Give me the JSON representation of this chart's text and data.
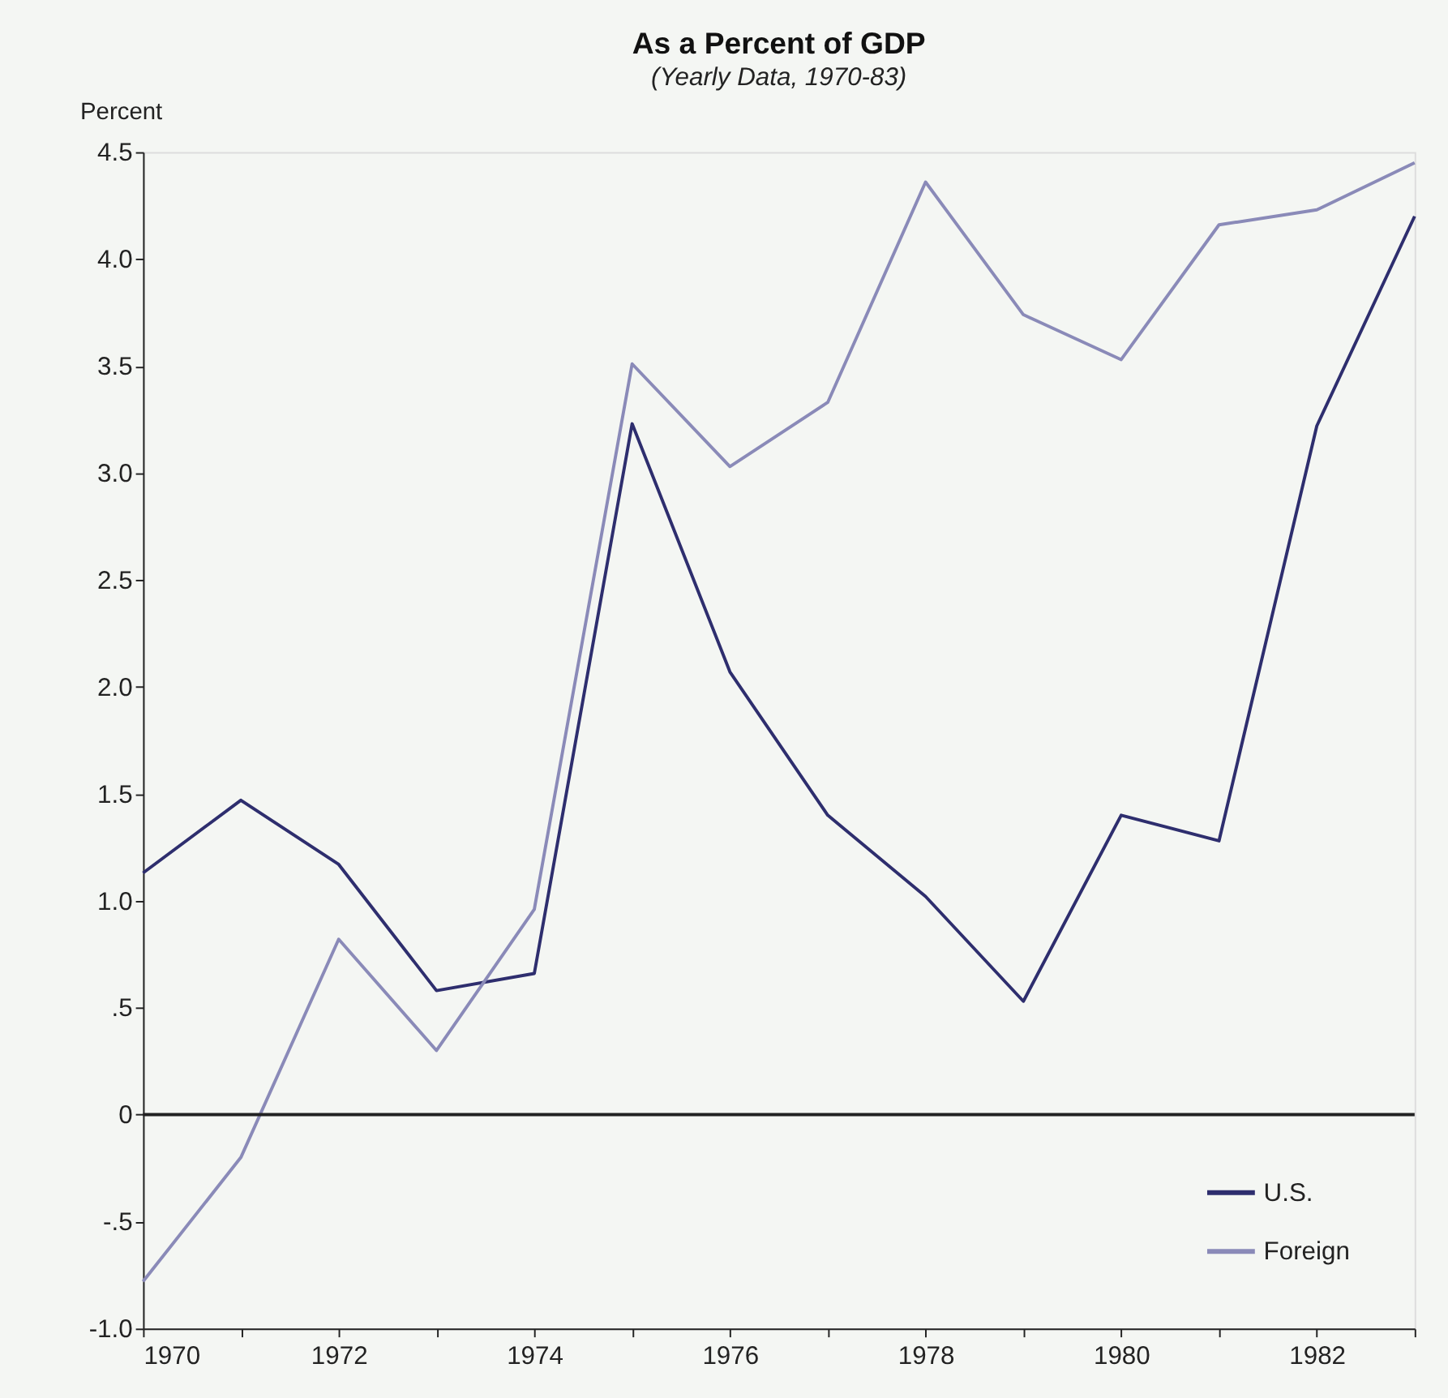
{
  "chart_data": {
    "type": "line",
    "title": "As a Percent of GDP",
    "subtitle": "(Yearly Data, 1970-83)",
    "ylabel": "Percent",
    "x": [
      1970,
      1971,
      1972,
      1973,
      1974,
      1975,
      1976,
      1977,
      1978,
      1979,
      1980,
      1981,
      1982,
      1983
    ],
    "series": [
      {
        "name": "U.S.",
        "color": "#2e2e6e",
        "values": [
          1.13,
          1.47,
          1.17,
          0.58,
          0.66,
          3.23,
          2.07,
          1.4,
          1.02,
          0.53,
          1.4,
          1.28,
          3.22,
          4.2
        ]
      },
      {
        "name": "Foreign",
        "color": "#8a8ab8",
        "values": [
          -0.78,
          -0.2,
          0.82,
          0.3,
          0.96,
          3.51,
          3.03,
          3.33,
          4.36,
          3.74,
          3.53,
          4.16,
          4.23,
          4.45
        ]
      }
    ],
    "xlim": [
      1970,
      1983
    ],
    "xticks": [
      1970,
      {
        "value": 1971,
        "label": null
      },
      1972,
      {
        "value": 1973,
        "label": null
      },
      1974,
      {
        "value": 1975,
        "label": null
      },
      1976,
      {
        "value": 1977,
        "label": null
      },
      1978,
      {
        "value": 1979,
        "label": null
      },
      1980,
      {
        "value": 1981,
        "label": null
      },
      1982,
      {
        "value": 1983,
        "label": null
      }
    ],
    "ylim": [
      -1.0,
      4.5
    ],
    "yticks": [
      {
        "value": -1.0,
        "label": "-1.0"
      },
      {
        "value": -0.5,
        "label": "-.5"
      },
      0,
      {
        "value": 0.5,
        "label": ".5"
      },
      {
        "value": 1.0,
        "label": "1.0"
      },
      {
        "value": 1.5,
        "label": "1.5"
      },
      {
        "value": 2.0,
        "label": "2.0"
      },
      {
        "value": 2.5,
        "label": "2.5"
      },
      {
        "value": 3.0,
        "label": "3.0"
      },
      {
        "value": 3.5,
        "label": "3.5"
      },
      {
        "value": 4.0,
        "label": "4.0"
      },
      {
        "value": 4.5,
        "label": "4.5"
      }
    ],
    "ref_lines": [
      {
        "axis": "y",
        "value": 0,
        "color": "#222222"
      }
    ],
    "legend": "bottom right",
    "grid": false,
    "marker": "none",
    "line_style": "solid"
  }
}
